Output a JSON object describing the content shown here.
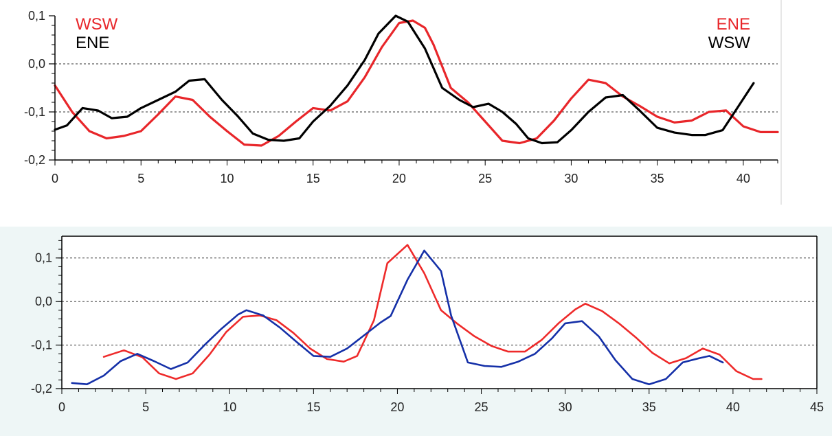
{
  "chart_data": [
    {
      "type": "line",
      "title": "",
      "xlabel": "",
      "ylabel": "",
      "xlim": [
        0,
        42
      ],
      "ylim": [
        -0.2,
        0.1
      ],
      "x_ticks": [
        0,
        5,
        10,
        15,
        20,
        25,
        30,
        35,
        40
      ],
      "x_tick_labels": [
        "0",
        "5",
        "10",
        "15",
        "20",
        "25",
        "30",
        "35",
        "40"
      ],
      "y_ticks": [
        -0.2,
        -0.1,
        0.0,
        0.1
      ],
      "y_tick_labels": [
        "-0,2",
        "-0,1",
        "0,0",
        "0,1"
      ],
      "grid": "dashed horizontal at -0,1 and 0,0",
      "legend_left": [
        {
          "label": "WSW",
          "color": "#e8262a"
        },
        {
          "label": "ENE",
          "color": "#000000"
        }
      ],
      "legend_right": [
        {
          "label": "ENE",
          "color": "#e8262a"
        },
        {
          "label": "WSW",
          "color": "#000000"
        }
      ],
      "series": [
        {
          "color": "#e8262a",
          "x": [
            0,
            1,
            2,
            3,
            4,
            5,
            6,
            7,
            8,
            9,
            10,
            11,
            12,
            13,
            14,
            15,
            16,
            17,
            18,
            19,
            20,
            20.8,
            21.5,
            22,
            23,
            24,
            25,
            26,
            27,
            28,
            29,
            30,
            31,
            32,
            33,
            34,
            35,
            36,
            37,
            38,
            39,
            40,
            41,
            42
          ],
          "y": [
            -0.045,
            -0.1,
            -0.14,
            -0.155,
            -0.15,
            -0.14,
            -0.105,
            -0.068,
            -0.075,
            -0.11,
            -0.14,
            -0.168,
            -0.17,
            -0.15,
            -0.12,
            -0.092,
            -0.097,
            -0.078,
            -0.028,
            0.035,
            0.085,
            0.09,
            0.075,
            0.04,
            -0.05,
            -0.08,
            -0.12,
            -0.16,
            -0.165,
            -0.155,
            -0.118,
            -0.072,
            -0.033,
            -0.04,
            -0.068,
            -0.088,
            -0.11,
            -0.122,
            -0.118,
            -0.1,
            -0.097,
            -0.13,
            -0.142,
            -0.142
          ]
        },
        {
          "color": "#000000",
          "x": [
            0,
            0.7,
            1.6,
            2.5,
            3.3,
            4.2,
            5,
            6,
            7,
            7.8,
            8.7,
            9.7,
            10.6,
            11.5,
            12.4,
            13.3,
            14.2,
            15,
            16,
            17,
            18,
            18.8,
            19.8,
            20.5,
            21.5,
            22.5,
            23.5,
            24.3,
            25.2,
            26,
            26.8,
            27.5,
            28.3,
            29.2,
            30,
            31,
            32,
            33,
            34,
            35,
            36,
            37,
            37.8,
            38.8,
            39.5,
            40.6
          ],
          "y": [
            -0.137,
            -0.128,
            -0.092,
            -0.097,
            -0.113,
            -0.11,
            -0.092,
            -0.075,
            -0.058,
            -0.035,
            -0.032,
            -0.075,
            -0.108,
            -0.145,
            -0.158,
            -0.16,
            -0.155,
            -0.12,
            -0.087,
            -0.045,
            0.008,
            0.063,
            0.1,
            0.088,
            0.032,
            -0.05,
            -0.075,
            -0.09,
            -0.083,
            -0.1,
            -0.125,
            -0.155,
            -0.165,
            -0.163,
            -0.138,
            -0.1,
            -0.07,
            -0.065,
            -0.098,
            -0.133,
            -0.143,
            -0.148,
            -0.148,
            -0.138,
            -0.1,
            -0.04
          ]
        }
      ]
    },
    {
      "type": "line",
      "title": "",
      "xlabel": "",
      "ylabel": "",
      "xlim": [
        0,
        45
      ],
      "ylim": [
        -0.2,
        0.15
      ],
      "x_ticks": [
        0,
        5,
        10,
        15,
        20,
        25,
        30,
        35,
        40,
        45
      ],
      "x_tick_labels": [
        "0",
        "5",
        "10",
        "15",
        "20",
        "25",
        "30",
        "35",
        "40",
        "45"
      ],
      "y_ticks": [
        -0.2,
        -0.1,
        0.0,
        0.1
      ],
      "y_tick_labels": [
        "-0,2",
        "-0,1",
        "0,0",
        "0,1"
      ],
      "grid": "dashed horizontal at -0,1, 0,0 and 0,1",
      "series": [
        {
          "color": "#ee2a2a",
          "x": [
            2.5,
            3.7,
            4.8,
            5.8,
            6.8,
            7.8,
            8.8,
            9.8,
            10.8,
            11.8,
            12.8,
            13.8,
            14.8,
            15.8,
            16.8,
            17.6,
            18.6,
            19.4,
            20.6,
            21.6,
            22.6,
            23.6,
            24.6,
            25.6,
            26.6,
            27.6,
            28.6,
            29.6,
            30.6,
            31.2,
            32.2,
            33.2,
            34.2,
            35.2,
            36.2,
            37.2,
            38.2,
            39.2,
            40.2,
            41.2,
            41.7
          ],
          "y": [
            -0.127,
            -0.112,
            -0.128,
            -0.165,
            -0.178,
            -0.165,
            -0.122,
            -0.07,
            -0.035,
            -0.032,
            -0.043,
            -0.072,
            -0.108,
            -0.132,
            -0.138,
            -0.125,
            -0.043,
            0.088,
            0.13,
            0.065,
            -0.02,
            -0.052,
            -0.08,
            -0.102,
            -0.115,
            -0.115,
            -0.088,
            -0.05,
            -0.018,
            -0.005,
            -0.022,
            -0.05,
            -0.082,
            -0.118,
            -0.142,
            -0.13,
            -0.108,
            -0.122,
            -0.16,
            -0.178,
            -0.178
          ]
        },
        {
          "color": "#1530a8",
          "x": [
            0.6,
            1.5,
            2.5,
            3.5,
            4.5,
            5.5,
            6.5,
            7.5,
            8.5,
            9.5,
            10.5,
            11.0,
            12.0,
            13.0,
            14.0,
            15.0,
            16.0,
            17.0,
            18.0,
            19.0,
            19.6,
            20.6,
            21.6,
            22.6,
            23.2,
            24.2,
            25.2,
            26.2,
            27.2,
            28.2,
            29.2,
            30.0,
            31.0,
            32.0,
            33.0,
            34.0,
            35.0,
            36.0,
            37.0,
            38.0,
            38.6,
            39.4
          ],
          "y": [
            -0.187,
            -0.19,
            -0.17,
            -0.137,
            -0.12,
            -0.137,
            -0.155,
            -0.14,
            -0.1,
            -0.063,
            -0.03,
            -0.02,
            -0.032,
            -0.06,
            -0.093,
            -0.125,
            -0.127,
            -0.108,
            -0.078,
            -0.048,
            -0.033,
            0.05,
            0.117,
            0.07,
            -0.032,
            -0.14,
            -0.148,
            -0.15,
            -0.138,
            -0.12,
            -0.085,
            -0.05,
            -0.045,
            -0.08,
            -0.135,
            -0.178,
            -0.19,
            -0.178,
            -0.14,
            -0.13,
            -0.125,
            -0.14
          ]
        }
      ]
    }
  ]
}
